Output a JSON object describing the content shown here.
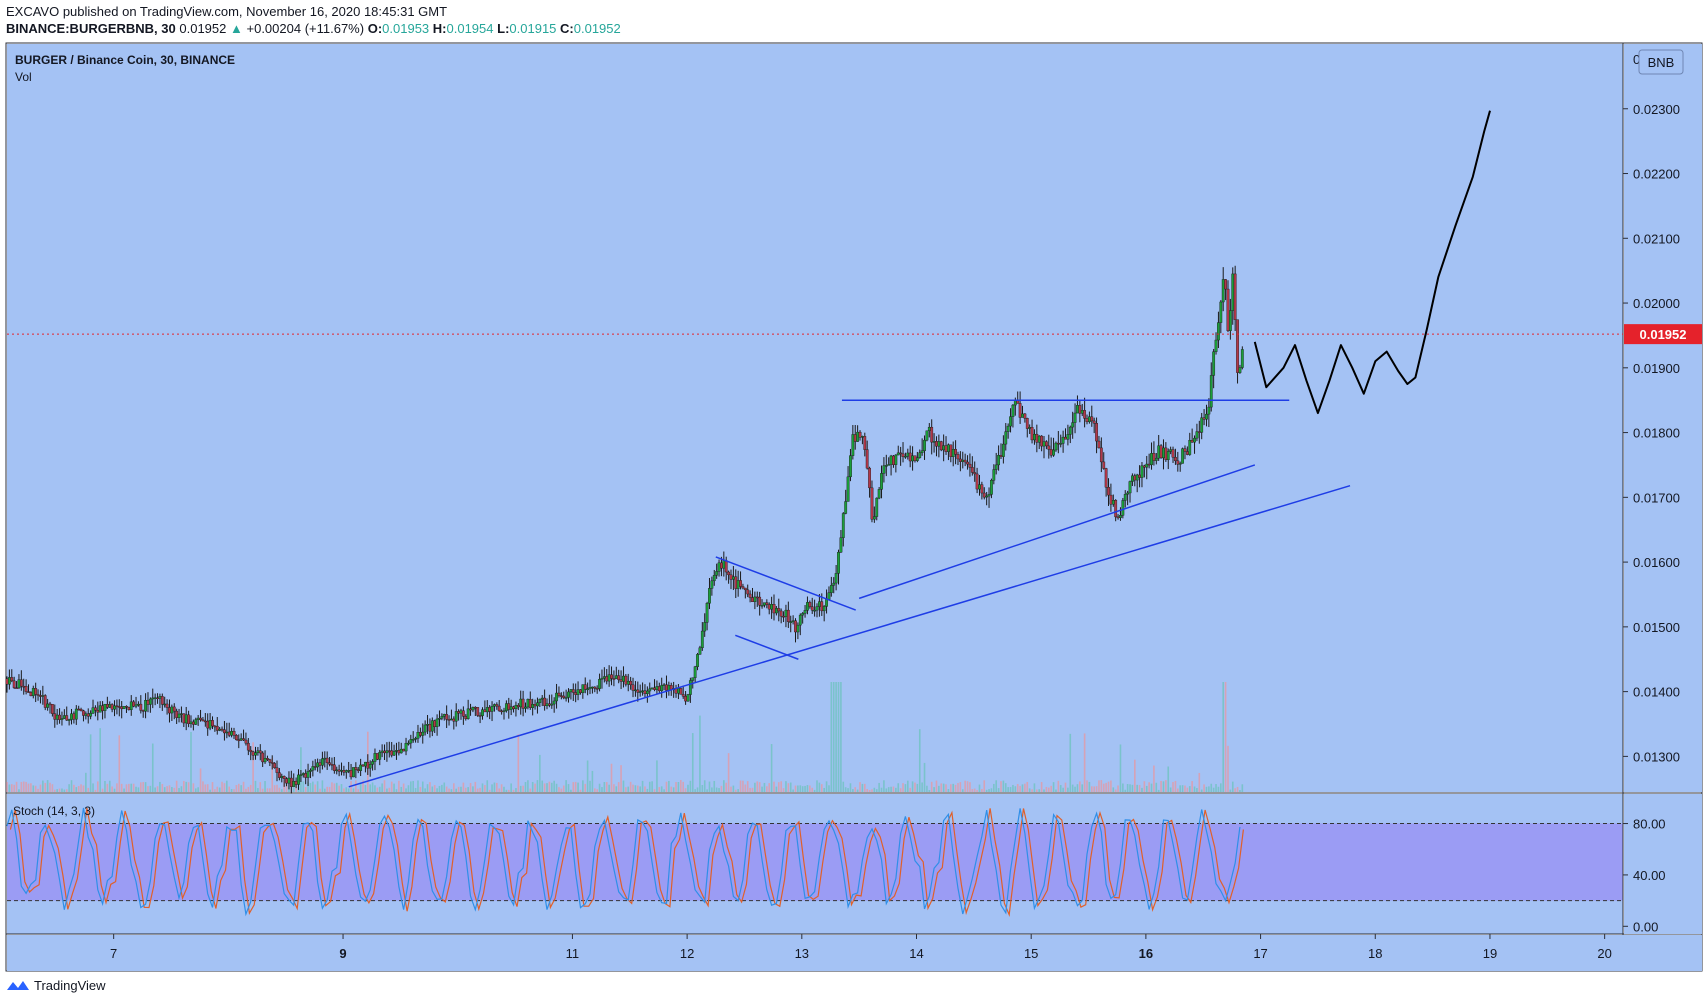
{
  "header": {
    "line1": "EXCAVO published on TradingView.com, November 16, 2020 18:45:31 GMT",
    "symbol": "BINANCE:BURGERBNB, 30",
    "last": "0.01952",
    "change": "+0.00204 (+11.67%)",
    "o_label": "O:",
    "o": "0.01953",
    "h_label": "H:",
    "h": "0.01954",
    "l_label": "L:",
    "l": "0.01915",
    "c_label": "C:",
    "c": "0.01952"
  },
  "legend": {
    "title": "BURGER / Binance Coin, 30, BINANCE",
    "vol": "Vol",
    "currency": "BNB"
  },
  "stoch": {
    "title": "Stoch (14, 3, 3)"
  },
  "footer": {
    "brand": "TradingView"
  },
  "colors": {
    "background": "#a4c2f4",
    "stoch_band": "#9b9cf4",
    "up": "#1b9e3a",
    "down": "#b2384a",
    "trendline": "#1e3de6",
    "drawing": "#000000",
    "last_price": "#e5222b",
    "k_line": "#2f8fe8",
    "d_line": "#e0602a"
  },
  "chart_data": [
    {
      "type": "candlestick",
      "title": "BURGER / Binance Coin, 30, BINANCE",
      "y_ticks": [
        "0.01300",
        "0.01400",
        "0.01500",
        "0.01600",
        "0.01700",
        "0.01800",
        "0.01900",
        "0.02000",
        "0.02100",
        "0.02200",
        "0.02300"
      ],
      "y_tick_values": [
        0.013,
        0.014,
        0.015,
        0.016,
        0.017,
        0.018,
        0.019,
        0.02,
        0.021,
        0.022,
        0.023
      ],
      "y_top_partial": "0",
      "ylim": [
        0.01245,
        0.024
      ],
      "x_ticks": [
        "7",
        "9",
        "11",
        "12",
        "13",
        "14",
        "15",
        "16",
        "17",
        "18",
        "19",
        "20"
      ],
      "x_tick_values": [
        7,
        9,
        11,
        12,
        13,
        14,
        15,
        16,
        17,
        18,
        19,
        20
      ],
      "x_tick_bold": [
        "9",
        "16"
      ],
      "xlim": [
        6.07,
        20.16
      ],
      "last_price": 0.01952,
      "last_price_label": "0.01952",
      "price_path": [
        [
          6.07,
          0.0142
        ],
        [
          6.35,
          0.01395
        ],
        [
          6.5,
          0.0136
        ],
        [
          6.8,
          0.0137
        ],
        [
          7.0,
          0.0138
        ],
        [
          7.2,
          0.01375
        ],
        [
          7.4,
          0.01385
        ],
        [
          7.6,
          0.0136
        ],
        [
          7.8,
          0.0135
        ],
        [
          8.0,
          0.0134
        ],
        [
          8.2,
          0.0131
        ],
        [
          8.4,
          0.0128
        ],
        [
          8.55,
          0.0126
        ],
        [
          8.7,
          0.0127
        ],
        [
          8.85,
          0.013
        ],
        [
          9.0,
          0.0127
        ],
        [
          9.15,
          0.0128
        ],
        [
          9.3,
          0.013
        ],
        [
          9.5,
          0.0131
        ],
        [
          9.7,
          0.0134
        ],
        [
          9.9,
          0.0136
        ],
        [
          10.2,
          0.0137
        ],
        [
          10.5,
          0.0138
        ],
        [
          10.8,
          0.01385
        ],
        [
          11.0,
          0.014
        ],
        [
          11.2,
          0.0141
        ],
        [
          11.35,
          0.01425
        ],
        [
          11.6,
          0.014
        ],
        [
          11.8,
          0.0141
        ],
        [
          12.0,
          0.0139
        ],
        [
          12.1,
          0.0146
        ],
        [
          12.2,
          0.0156
        ],
        [
          12.3,
          0.016
        ],
        [
          12.4,
          0.0157
        ],
        [
          12.55,
          0.0155
        ],
        [
          12.7,
          0.0153
        ],
        [
          12.85,
          0.0152
        ],
        [
          12.95,
          0.015
        ],
        [
          13.05,
          0.0153
        ],
        [
          13.2,
          0.0153
        ],
        [
          13.3,
          0.0158
        ],
        [
          13.38,
          0.017
        ],
        [
          13.45,
          0.018
        ],
        [
          13.55,
          0.0178
        ],
        [
          13.62,
          0.0166
        ],
        [
          13.7,
          0.0174
        ],
        [
          13.85,
          0.0177
        ],
        [
          14.0,
          0.0176
        ],
        [
          14.1,
          0.018
        ],
        [
          14.3,
          0.0177
        ],
        [
          14.5,
          0.0173
        ],
        [
          14.6,
          0.0169
        ],
        [
          14.75,
          0.0178
        ],
        [
          14.85,
          0.0185
        ],
        [
          15.0,
          0.018
        ],
        [
          15.15,
          0.0177
        ],
        [
          15.3,
          0.0179
        ],
        [
          15.4,
          0.0184
        ],
        [
          15.55,
          0.0181
        ],
        [
          15.65,
          0.0172
        ],
        [
          15.75,
          0.0167
        ],
        [
          15.9,
          0.0173
        ],
        [
          16.1,
          0.0177
        ],
        [
          16.3,
          0.0176
        ],
        [
          16.45,
          0.018
        ],
        [
          16.55,
          0.0185
        ],
        [
          16.62,
          0.0196
        ],
        [
          16.68,
          0.0205
        ],
        [
          16.72,
          0.0195
        ],
        [
          16.76,
          0.0206
        ],
        [
          16.8,
          0.0188
        ],
        [
          16.86,
          0.0195
        ]
      ],
      "trendlines": [
        {
          "from": [
            9.05,
            0.01253
          ],
          "to": [
            17.78,
            0.01718
          ]
        },
        {
          "from": [
            13.5,
            0.01544
          ],
          "to": [
            16.95,
            0.0175
          ]
        },
        {
          "from": [
            13.35,
            0.0185
          ],
          "to": [
            17.25,
            0.0185
          ]
        },
        {
          "from": [
            12.25,
            0.01608
          ],
          "to": [
            13.47,
            0.01526
          ]
        },
        {
          "from": [
            12.42,
            0.01487
          ],
          "to": [
            12.97,
            0.0145
          ]
        }
      ],
      "projection": [
        [
          16.95,
          0.0194
        ],
        [
          17.05,
          0.0187
        ],
        [
          17.2,
          0.019
        ],
        [
          17.3,
          0.01935
        ],
        [
          17.4,
          0.0188
        ],
        [
          17.5,
          0.0183
        ],
        [
          17.6,
          0.0188
        ],
        [
          17.7,
          0.01935
        ],
        [
          17.8,
          0.019
        ],
        [
          17.9,
          0.0186
        ],
        [
          18.0,
          0.0191
        ],
        [
          18.1,
          0.01925
        ],
        [
          18.2,
          0.01895
        ],
        [
          18.28,
          0.01875
        ],
        [
          18.35,
          0.01885
        ],
        [
          18.45,
          0.0196
        ],
        [
          18.55,
          0.0204
        ],
        [
          18.7,
          0.0212
        ],
        [
          18.85,
          0.02195
        ],
        [
          18.95,
          0.02265
        ],
        [
          19.0,
          0.02297
        ]
      ]
    },
    {
      "type": "line",
      "title": "Stoch (14, 3, 3)",
      "y_ticks": [
        "0.00",
        "40.00",
        "80.00"
      ],
      "y_tick_values": [
        0,
        40,
        80
      ],
      "band": [
        20,
        80
      ],
      "ylim": [
        -6,
        103
      ],
      "series": []
    }
  ]
}
